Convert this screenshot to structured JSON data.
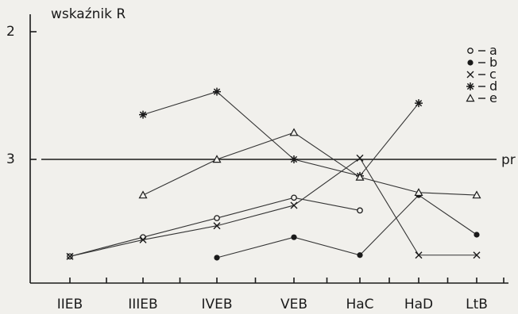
{
  "chart_data": {
    "type": "line",
    "title": "",
    "ylabel": "wskaźnik R",
    "xlabel": "",
    "categories": [
      "IIEB",
      "IIIEB",
      "IVEB",
      "VEB",
      "HaC",
      "HaD",
      "LtB"
    ],
    "y_ticks": [
      {
        "label": "2",
        "value": 2
      },
      {
        "label": "3",
        "value": 3
      }
    ],
    "ylim": [
      4.9,
      1.9
    ],
    "reference_line": {
      "label": "pr",
      "value": 3
    },
    "legend": {
      "placement": "top-right",
      "entries": [
        {
          "key": "a",
          "marker": "open-circle"
        },
        {
          "key": "b",
          "marker": "filled-circle"
        },
        {
          "key": "c",
          "marker": "cross"
        },
        {
          "key": "d",
          "marker": "asterisk"
        },
        {
          "key": "e",
          "marker": "triangle"
        }
      ]
    },
    "series": [
      {
        "key": "a",
        "marker": "open-circle",
        "values": [
          3.76,
          3.61,
          3.46,
          3.3,
          3.4,
          null,
          null
        ]
      },
      {
        "key": "b",
        "marker": "filled-circle",
        "values": [
          null,
          null,
          3.77,
          3.61,
          3.75,
          3.28,
          3.59
        ]
      },
      {
        "key": "c",
        "marker": "cross",
        "values": [
          3.76,
          3.63,
          3.52,
          3.36,
          2.99,
          3.75,
          3.75
        ]
      },
      {
        "key": "d",
        "marker": "asterisk",
        "values": [
          null,
          2.65,
          2.47,
          3.0,
          3.13,
          2.56,
          null
        ]
      },
      {
        "key": "e",
        "marker": "triangle",
        "values": [
          null,
          3.28,
          3.0,
          2.79,
          3.14,
          3.26,
          3.28
        ]
      }
    ]
  }
}
